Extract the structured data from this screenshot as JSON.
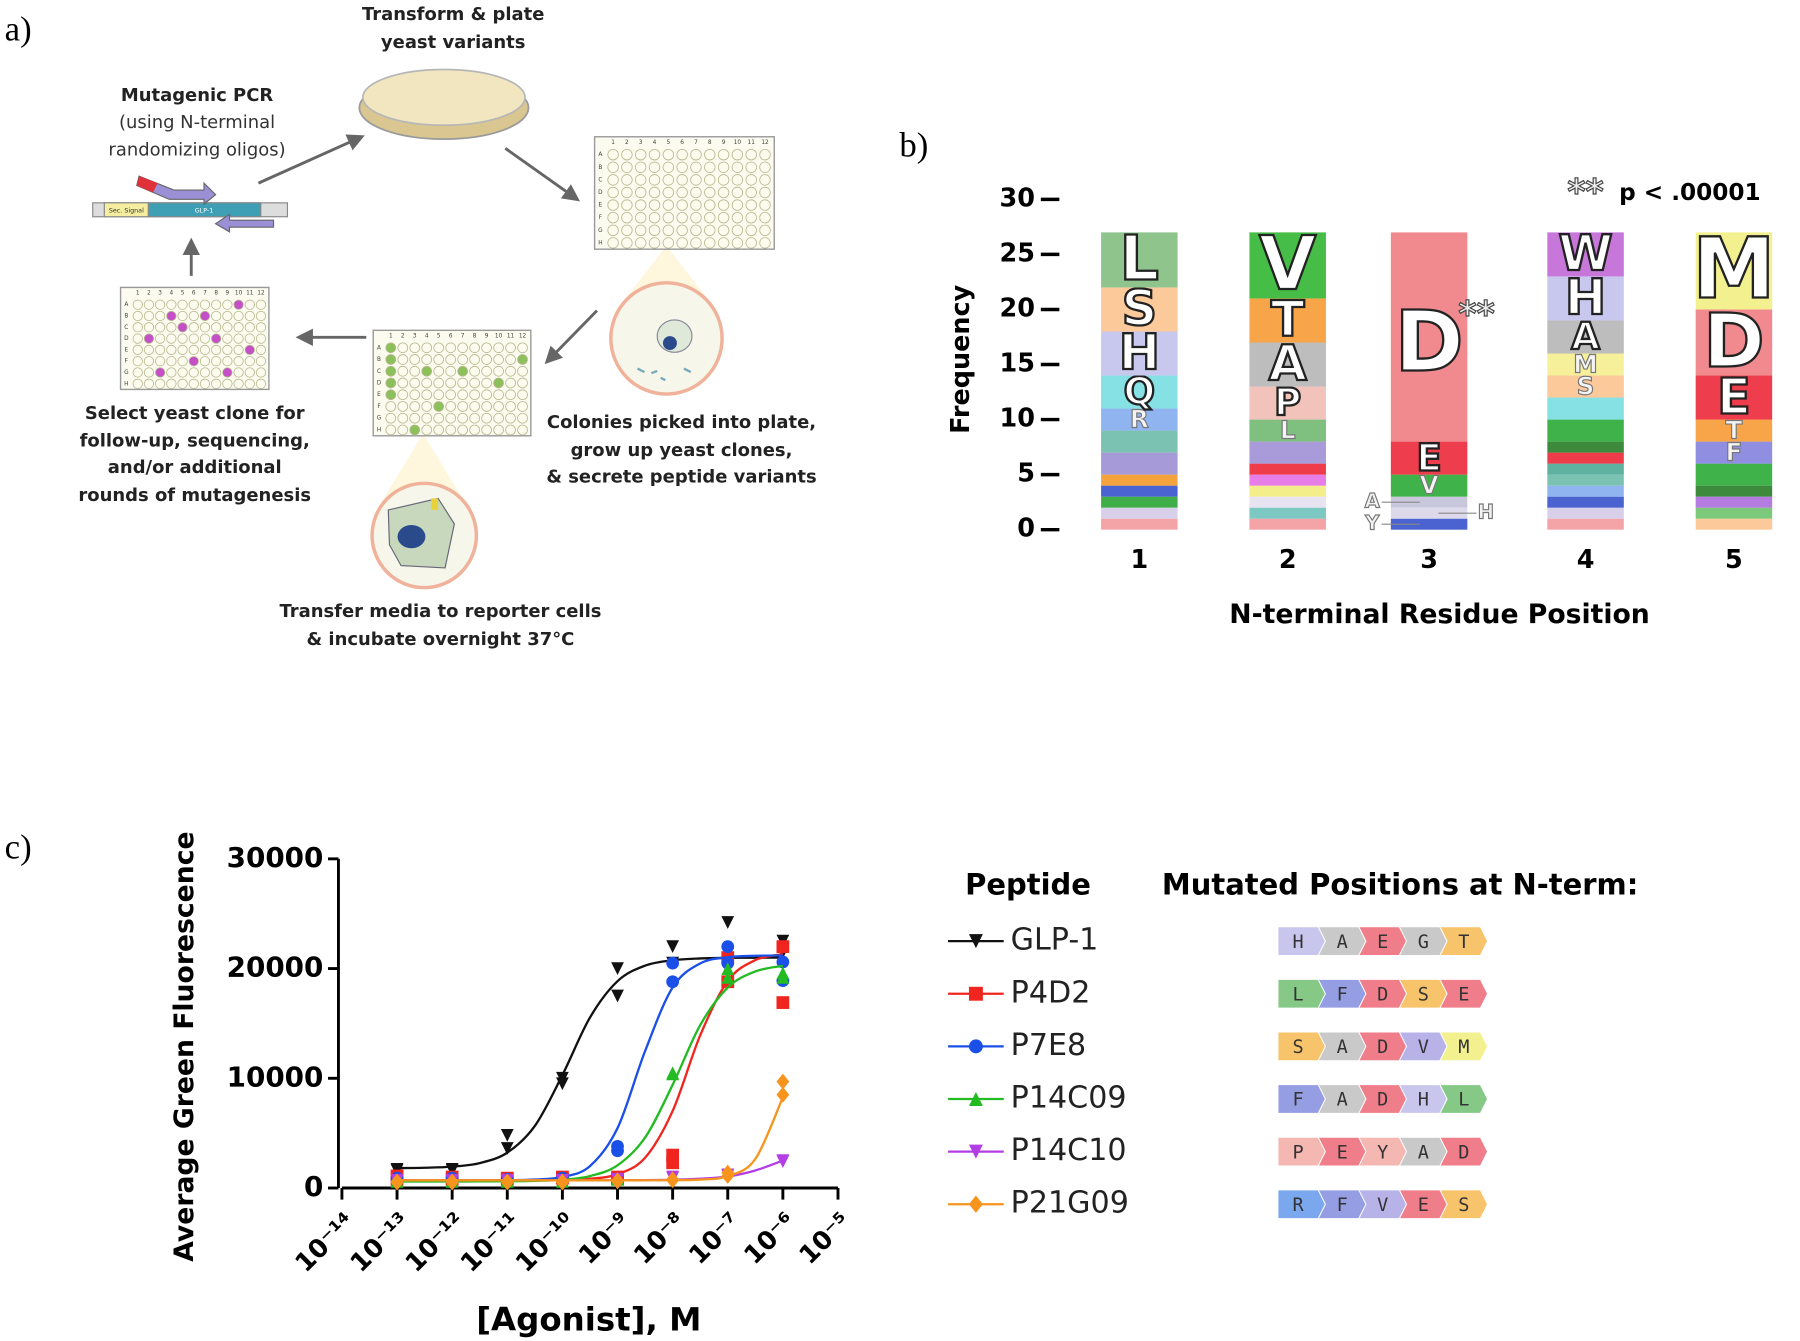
{
  "panel_labels": [
    "a)",
    "b)",
    "c)"
  ],
  "diagram": {
    "transform": [
      "Transform & plate",
      "yeast variants"
    ],
    "pcr_title": "Mutagenic PCR",
    "pcr_note": [
      "(using N-terminal",
      "randomizing oligos)"
    ],
    "gene": [
      "Sec. Signal",
      "GLP-1"
    ],
    "colonies": [
      "Colonies picked into plate,",
      "grow up yeast clones,",
      "& secrete peptide variants"
    ],
    "transfer": [
      "Transfer media to reporter cells",
      "& incubate overnight 37°C"
    ],
    "select": [
      "Select yeast clone for",
      "follow-up, sequencing,",
      "and/or additional",
      "rounds of mutagenesis"
    ],
    "plate_rows": [
      "A",
      "B",
      "C",
      "D",
      "E",
      "F",
      "G",
      "H"
    ],
    "plate_columns": [
      "1",
      "2",
      "3",
      "4",
      "5",
      "6",
      "7",
      "8",
      "9",
      "10",
      "11",
      "12"
    ]
  },
  "chart_data": [
    {
      "type": "stacked_bar",
      "ylabel": "Frequency",
      "xlabel": "N-terminal Residue Position",
      "categories": [
        "1",
        "2",
        "3",
        "4",
        "5"
      ],
      "ylim": [
        0,
        30
      ],
      "yticks": [
        0,
        5,
        10,
        15,
        20,
        25,
        30
      ],
      "stacks": [
        [
          {
            "value": 1,
            "color": "#f4a3a6"
          },
          {
            "value": 1,
            "color": "#d8d0ea"
          },
          {
            "value": 1,
            "color": "#3fae49"
          },
          {
            "value": 1,
            "color": "#4a63d0"
          },
          {
            "value": 1,
            "color": "#f5a33c"
          },
          {
            "value": 2,
            "color": "#a79ad8"
          },
          {
            "value": 2,
            "color": "#7cc2b2"
          },
          {
            "label": "R",
            "value": 2,
            "color": "#8fb4ef"
          },
          {
            "label": "Q",
            "value": 3,
            "color": "#86e1e4"
          },
          {
            "label": "H",
            "value": 4,
            "color": "#c8c8ee"
          },
          {
            "label": "S",
            "value": 4,
            "color": "#fbc99a"
          },
          {
            "label": "L",
            "value": 5,
            "color": "#8fc48d"
          }
        ],
        [
          {
            "value": 1,
            "color": "#f4a3a6"
          },
          {
            "value": 1,
            "color": "#7cc9c4"
          },
          {
            "value": 1,
            "color": "#e8e3f0"
          },
          {
            "value": 1,
            "color": "#f3ee8a"
          },
          {
            "value": 1,
            "color": "#e77ee8"
          },
          {
            "value": 1,
            "color": "#ef3c4a"
          },
          {
            "value": 2,
            "color": "#a99ad9"
          },
          {
            "label": "L",
            "value": 2,
            "color": "#7fbf7f"
          },
          {
            "label": "P",
            "value": 3,
            "color": "#f2c3bb"
          },
          {
            "label": "A",
            "value": 4,
            "color": "#bdbdbd"
          },
          {
            "label": "T",
            "value": 4,
            "color": "#f8a54a"
          },
          {
            "label": "V",
            "value": 6,
            "color": "#46bd46"
          }
        ],
        [
          {
            "label": "Y",
            "value": 1,
            "color": "#4a63d0"
          },
          {
            "label": "H",
            "value": 1,
            "color": "#dcd9ea"
          },
          {
            "label": "A",
            "value": 1,
            "color": "#c9c7dc"
          },
          {
            "label": "V",
            "value": 2,
            "color": "#3fb34a"
          },
          {
            "label": "E",
            "value": 3,
            "color": "#ee3d4c"
          },
          {
            "label": "D",
            "value": 19,
            "color": "#f08a8e"
          }
        ],
        [
          {
            "value": 1,
            "color": "#f4a3a6"
          },
          {
            "value": 1,
            "color": "#d8d0ea"
          },
          {
            "value": 1,
            "color": "#4a63d0"
          },
          {
            "value": 1,
            "color": "#8fb4ef"
          },
          {
            "value": 1,
            "color": "#7cc2b2"
          },
          {
            "value": 1,
            "color": "#5fb1a0"
          },
          {
            "value": 1,
            "color": "#ef3c4a"
          },
          {
            "value": 1,
            "color": "#3d8a3d"
          },
          {
            "value": 2,
            "color": "#3fb34a"
          },
          {
            "value": 2,
            "color": "#86e1e4"
          },
          {
            "label": "S",
            "value": 2,
            "color": "#fbc99a"
          },
          {
            "label": "M",
            "value": 2,
            "color": "#f6f09a"
          },
          {
            "label": "A",
            "value": 3,
            "color": "#bdbdbd"
          },
          {
            "label": "H",
            "value": 4,
            "color": "#c8c8ee"
          },
          {
            "label": "W",
            "value": 4,
            "color": "#c777d9"
          }
        ],
        [
          {
            "value": 1,
            "color": "#fbc99a"
          },
          {
            "value": 1,
            "color": "#7cc97c"
          },
          {
            "value": 1,
            "color": "#b47be0"
          },
          {
            "value": 1,
            "color": "#3d8a3d"
          },
          {
            "value": 2,
            "color": "#3fb34a"
          },
          {
            "label": "F",
            "value": 2,
            "color": "#8f8ee0"
          },
          {
            "label": "T",
            "value": 2,
            "color": "#f8a54a"
          },
          {
            "label": "E",
            "value": 4,
            "color": "#ee3d4c"
          },
          {
            "label": "D",
            "value": 6,
            "color": "#f08a8e"
          },
          {
            "label": "M",
            "value": 7,
            "color": "#f3f08f"
          }
        ]
      ],
      "annotations": [
        "**",
        "p < .00001",
        "**"
      ]
    },
    {
      "type": "dose_response",
      "xlabel": "[Agonist], M",
      "ylabel": "Average Green Fluorescence",
      "xscale": "log",
      "xlim": [
        1e-14,
        1e-05
      ],
      "xticks": [
        {
          "value": 1e-14,
          "label": "10⁻¹⁴"
        },
        {
          "value": 1e-13,
          "label": "10⁻¹³"
        },
        {
          "value": 1e-12,
          "label": "10⁻¹²"
        },
        {
          "value": 1e-11,
          "label": "10⁻¹¹"
        },
        {
          "value": 1e-10,
          "label": "10⁻¹⁰"
        },
        {
          "value": 1e-09,
          "label": "10⁻⁹"
        },
        {
          "value": 1e-08,
          "label": "10⁻⁸"
        },
        {
          "value": 1e-07,
          "label": "10⁻⁷"
        },
        {
          "value": 1e-06,
          "label": "10⁻⁶"
        },
        {
          "value": 1e-05,
          "label": "10⁻⁵"
        }
      ],
      "ylim": [
        0,
        30000
      ],
      "yticks": [
        0,
        10000,
        20000,
        30000
      ],
      "legend_title": "Peptide",
      "mutations_title": "Mutated Positions at N-term:",
      "curve_x": [
        1e-13,
        3.16e-13,
        1e-12,
        3.16e-12,
        1e-11,
        3.16e-11,
        1e-10,
        3.16e-10,
        1e-09,
        3.16e-09,
        1e-08,
        3.16e-08,
        1e-07,
        3.16e-07,
        1e-06
      ],
      "series": [
        {
          "name": "GLP-1",
          "color": "#111111",
          "marker": "triangle-down",
          "x": [
            1e-13,
            1e-13,
            1e-12,
            1e-12,
            1e-11,
            1e-11,
            1e-10,
            1e-10,
            1e-09,
            1e-09,
            1e-08,
            1e-08,
            1e-07,
            1e-07,
            1e-06,
            1e-06
          ],
          "values": [
            1700,
            1600,
            1700,
            1600,
            4800,
            3600,
            10000,
            9500,
            20000,
            17500,
            22000,
            20500,
            24200,
            20000,
            22500,
            21500
          ],
          "curve": [
            1815,
            1848,
            1951,
            2272,
            3224,
            5655,
            10296,
            15534,
            18852,
            20265,
            20761,
            20924,
            20976,
            20992,
            20998
          ],
          "mutations": [
            "H",
            "A",
            "E",
            "G",
            "T"
          ]
        },
        {
          "name": "P4D2",
          "color": "#f0261e",
          "marker": "square",
          "x": [
            1e-13,
            1e-13,
            1e-12,
            1e-12,
            1e-11,
            1e-11,
            1e-10,
            1e-10,
            1e-09,
            1e-09,
            1e-08,
            1e-08,
            1e-07,
            1e-07,
            1e-06,
            1e-06
          ],
          "values": [
            1100,
            800,
            1000,
            800,
            900,
            800,
            1000,
            900,
            1000,
            800,
            3000,
            2300,
            21000,
            18800,
            22000,
            16900
          ],
          "curve": [
            700,
            700,
            700,
            700,
            700,
            701,
            736,
            843,
            1257,
            2755,
            7022,
            13906,
            18874,
            20771,
            21312
          ],
          "mutations": [
            "L",
            "F",
            "D",
            "S",
            "E"
          ]
        },
        {
          "name": "P7E8",
          "color": "#1a4fe8",
          "marker": "circle",
          "x": [
            1e-13,
            1e-13,
            1e-12,
            1e-12,
            1e-11,
            1e-11,
            1e-10,
            1e-10,
            1e-09,
            1e-09,
            1e-08,
            1e-08,
            1e-07,
            1e-07,
            1e-06,
            1e-06
          ],
          "values": [
            900,
            700,
            900,
            700,
            800,
            700,
            900,
            800,
            3800,
            3400,
            20500,
            18800,
            22000,
            20500,
            20600,
            18900
          ],
          "curve": [
            700,
            700,
            701,
            704,
            715,
            770,
            1000,
            1997,
            5456,
            12475,
            18281,
            20465,
            21031,
            21164,
            21192
          ],
          "mutations": [
            "S",
            "A",
            "D",
            "V",
            "M"
          ]
        },
        {
          "name": "P14C09",
          "color": "#22bb22",
          "marker": "triangle-up",
          "x": [
            1e-13,
            1e-13,
            1e-12,
            1e-12,
            1e-11,
            1e-11,
            1e-10,
            1e-10,
            1e-09,
            1e-09,
            1e-08,
            1e-08,
            1e-07,
            1e-07,
            1e-06,
            1e-06
          ],
          "values": [
            700,
            600,
            700,
            600,
            700,
            600,
            700,
            600,
            900,
            800,
            10500,
            10400,
            20000,
            19200,
            19600,
            19200
          ],
          "curve": [
            600,
            600,
            600,
            605,
            616,
            650,
            757,
            1088,
            2072,
            4596,
            9405,
            14835,
            18273,
            19738,
            20252
          ],
          "mutations": [
            "F",
            "A",
            "D",
            "H",
            "L"
          ]
        },
        {
          "name": "P14C10",
          "color": "#b33ee6",
          "marker": "triangle-down",
          "x": [
            1e-13,
            1e-13,
            1e-12,
            1e-12,
            1e-11,
            1e-11,
            1e-10,
            1e-10,
            1e-09,
            1e-09,
            1e-08,
            1e-08,
            1e-07,
            1e-07,
            1e-06,
            1e-06
          ],
          "values": [
            700,
            600,
            700,
            600,
            700,
            600,
            700,
            600,
            800,
            700,
            1000,
            900,
            1200,
            1100,
            2500,
            2400
          ],
          "curve": [
            700,
            700,
            700,
            700,
            700,
            700,
            700,
            700,
            710,
            720,
            750,
            850,
            1050,
            1600,
            2500
          ],
          "mutations": [
            "P",
            "E",
            "Y",
            "A",
            "D"
          ]
        },
        {
          "name": "P21G09",
          "color": "#f7941d",
          "marker": "diamond",
          "x": [
            1e-13,
            1e-13,
            1e-12,
            1e-12,
            1e-11,
            1e-11,
            1e-10,
            1e-10,
            1e-09,
            1e-09,
            1e-08,
            1e-08,
            1e-07,
            1e-07,
            1e-06,
            1e-06
          ],
          "values": [
            600,
            500,
            600,
            500,
            600,
            500,
            600,
            500,
            700,
            600,
            800,
            700,
            1400,
            1100,
            9700,
            8500
          ],
          "curve": [
            700,
            700,
            700,
            700,
            700,
            700,
            700,
            700,
            700,
            705,
            712,
            768,
            1076,
            2644,
            8275
          ],
          "mutations": [
            "R",
            "F",
            "V",
            "E",
            "S"
          ]
        }
      ],
      "residue_colors": {
        "H": "#c9c6ee",
        "A": "#c9c9c9",
        "E": "#f07d8a",
        "G": "#c9c9c9",
        "T": "#f7c46b",
        "L": "#86c986",
        "F": "#959ee3",
        "D": "#f07d8a",
        "S": "#f7c46b",
        "V": "#b7b3e8",
        "M": "#f3f08f",
        "P": "#f4b7b1",
        "Y": "#f4b7b1",
        "R": "#7ba7ef"
      }
    }
  ]
}
